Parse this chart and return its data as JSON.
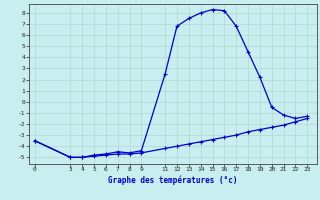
{
  "xlabel": "Graphe des températures (°c)",
  "background_color": "#c8eef0",
  "grid_color": "#b0d8d0",
  "line_color": "#0000cc",
  "x_ticks": [
    0,
    3,
    4,
    5,
    6,
    7,
    8,
    9,
    11,
    12,
    13,
    14,
    15,
    16,
    17,
    18,
    19,
    20,
    21,
    22,
    23
  ],
  "x_tick_labels": [
    "0",
    "3",
    "4",
    "5",
    "6",
    "7",
    "8",
    "9",
    "11",
    "12",
    "13",
    "14",
    "15",
    "16",
    "17",
    "18",
    "19",
    "20",
    "21",
    "22",
    "23"
  ],
  "ylim": [
    -5.6,
    8.8
  ],
  "xlim": [
    -0.5,
    23.8
  ],
  "line1_x": [
    0,
    3,
    4,
    5,
    6,
    7,
    8,
    9,
    11,
    12,
    13,
    14,
    15,
    16,
    17,
    18,
    19,
    20,
    21,
    22,
    23
  ],
  "line1_y": [
    -3.5,
    -5.0,
    -5.0,
    -4.8,
    -4.7,
    -4.5,
    -4.6,
    -4.4,
    2.5,
    6.8,
    7.5,
    8.0,
    8.3,
    8.2,
    6.8,
    4.5,
    2.2,
    -0.5,
    -1.2,
    -1.5,
    -1.3
  ],
  "line2_x": [
    0,
    3,
    4,
    5,
    6,
    7,
    8,
    9,
    11,
    12,
    13,
    14,
    15,
    16,
    17,
    18,
    19,
    20,
    21,
    22,
    23
  ],
  "line2_y": [
    -3.5,
    -5.0,
    -5.0,
    -4.9,
    -4.8,
    -4.7,
    -4.7,
    -4.6,
    -4.2,
    -4.0,
    -3.8,
    -3.6,
    -3.4,
    -3.2,
    -3.0,
    -2.7,
    -2.5,
    -2.3,
    -2.1,
    -1.8,
    -1.5
  ],
  "yticks": [
    -5,
    -4,
    -3,
    -2,
    -1,
    0,
    1,
    2,
    3,
    4,
    5,
    6,
    7,
    8
  ],
  "y_tick_labels": [
    "-5",
    "-4",
    "-3",
    "-2",
    "-1",
    "0",
    "1",
    "2",
    "3",
    "4",
    "5",
    "6",
    "7",
    "8"
  ]
}
